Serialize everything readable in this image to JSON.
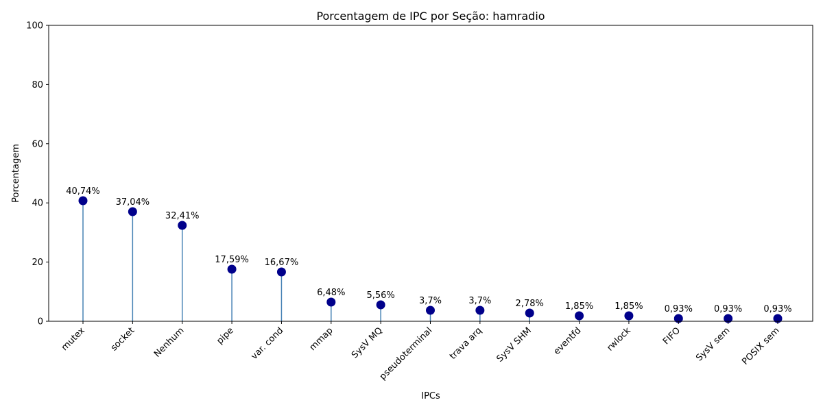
{
  "chart_data": {
    "type": "lollipop",
    "title": "Porcentagem de IPC por Seção: hamradio",
    "xlabel": "IPCs",
    "ylabel": "Porcentagem",
    "ylim": [
      0,
      100
    ],
    "yticks": [
      0,
      20,
      40,
      60,
      80,
      100
    ],
    "categories": [
      "mutex",
      "socket",
      "Nenhum",
      "pipe",
      "var. cond",
      "mmap",
      "SysV MQ",
      "pseudoterminal",
      "trava arq",
      "SysV SHM",
      "eventfd",
      "rwlock",
      "FIFO",
      "SysV sem",
      "POSIX sem"
    ],
    "values": [
      40.74,
      37.04,
      32.41,
      17.59,
      16.67,
      6.48,
      5.56,
      3.7,
      3.7,
      2.78,
      1.85,
      1.85,
      0.93,
      0.93,
      0.93
    ],
    "data_labels": [
      "40,74%",
      "37,04%",
      "32,41%",
      "17,59%",
      "16,67%",
      "6,48%",
      "5,56%",
      "3,7%",
      "3,7%",
      "2,78%",
      "1,85%",
      "1,85%",
      "0,93%",
      "0,93%",
      "0,93%"
    ],
    "colors": {
      "marker": "#00008b",
      "stem": "#4682b4"
    },
    "grid": false,
    "legend": "none"
  }
}
